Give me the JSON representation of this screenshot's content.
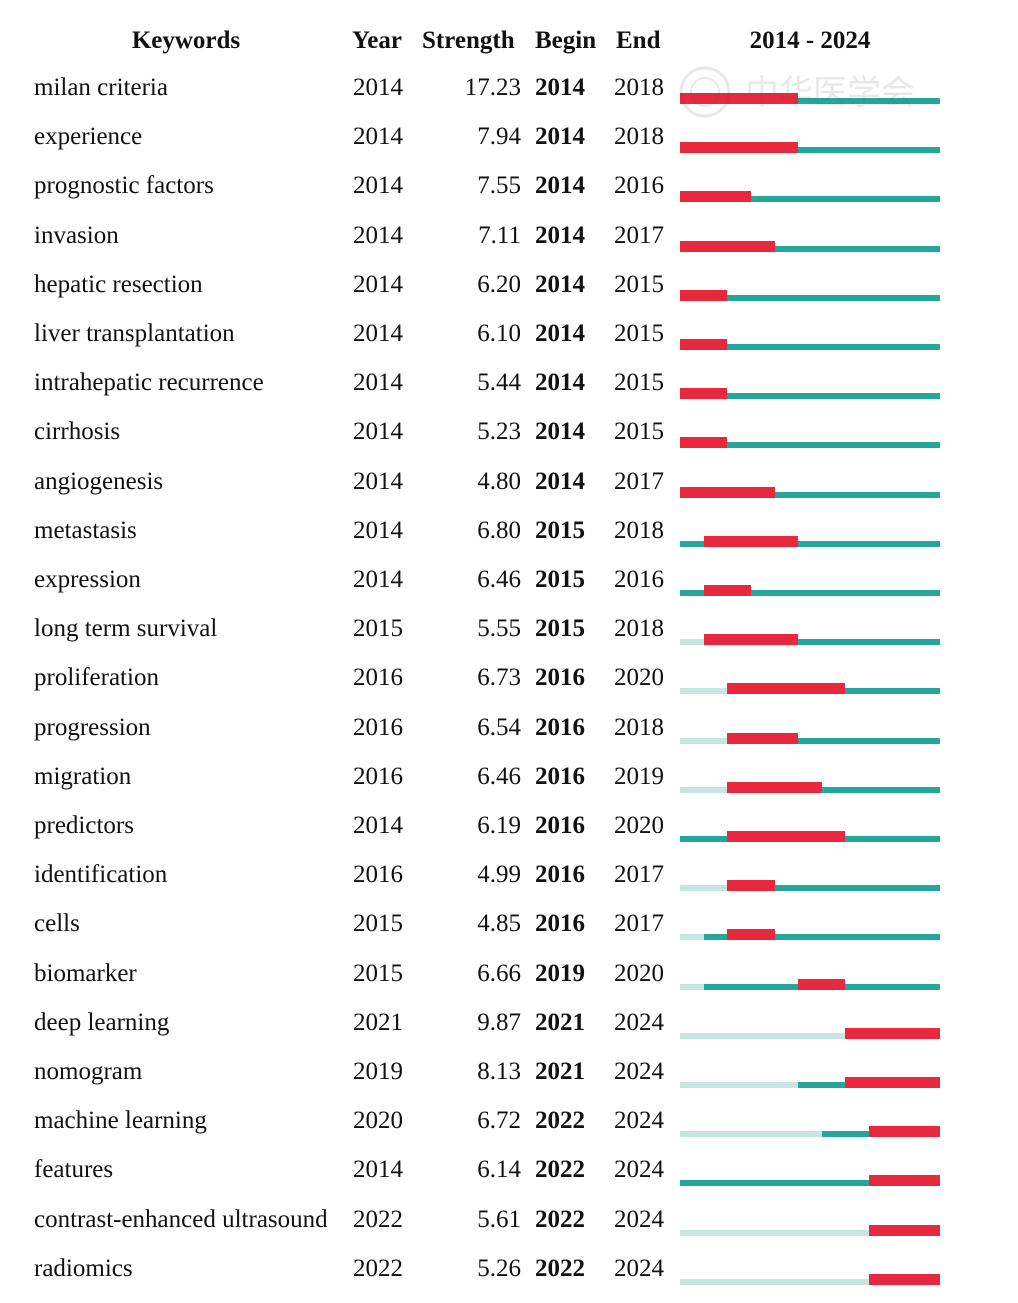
{
  "chart_data": {
    "type": "table",
    "columns": [
      "Keywords",
      "Year",
      "Strength",
      "Begin",
      "End"
    ],
    "range_label": "2014 - 2024",
    "timeline_start": 2014,
    "timeline_end": 2024,
    "colors": {
      "burst": "#e8283c",
      "active": "#26a69a",
      "inactive": "#c7e6e2"
    },
    "rows": [
      {
        "keyword": "milan criteria",
        "year": "2014",
        "strength": "17.23",
        "begin": "2014",
        "end": "2018"
      },
      {
        "keyword": "experience",
        "year": "2014",
        "strength": "7.94",
        "begin": "2014",
        "end": "2018"
      },
      {
        "keyword": "prognostic factors",
        "year": "2014",
        "strength": "7.55",
        "begin": "2014",
        "end": "2016"
      },
      {
        "keyword": "invasion",
        "year": "2014",
        "strength": "7.11",
        "begin": "2014",
        "end": "2017"
      },
      {
        "keyword": "hepatic resection",
        "year": "2014",
        "strength": "6.20",
        "begin": "2014",
        "end": "2015"
      },
      {
        "keyword": "liver transplantation",
        "year": "2014",
        "strength": "6.10",
        "begin": "2014",
        "end": "2015"
      },
      {
        "keyword": "intrahepatic recurrence",
        "year": "2014",
        "strength": "5.44",
        "begin": "2014",
        "end": "2015"
      },
      {
        "keyword": "cirrhosis",
        "year": "2014",
        "strength": "5.23",
        "begin": "2014",
        "end": "2015"
      },
      {
        "keyword": "angiogenesis",
        "year": "2014",
        "strength": "4.80",
        "begin": "2014",
        "end": "2017"
      },
      {
        "keyword": "metastasis",
        "year": "2014",
        "strength": "6.80",
        "begin": "2015",
        "end": "2018"
      },
      {
        "keyword": "expression",
        "year": "2014",
        "strength": "6.46",
        "begin": "2015",
        "end": "2016"
      },
      {
        "keyword": "long term survival",
        "year": "2015",
        "strength": "5.55",
        "begin": "2015",
        "end": "2018"
      },
      {
        "keyword": "proliferation",
        "year": "2016",
        "strength": "6.73",
        "begin": "2016",
        "end": "2020"
      },
      {
        "keyword": "progression",
        "year": "2016",
        "strength": "6.54",
        "begin": "2016",
        "end": "2018"
      },
      {
        "keyword": "migration",
        "year": "2016",
        "strength": "6.46",
        "begin": "2016",
        "end": "2019"
      },
      {
        "keyword": "predictors",
        "year": "2014",
        "strength": "6.19",
        "begin": "2016",
        "end": "2020"
      },
      {
        "keyword": "identification",
        "year": "2016",
        "strength": "4.99",
        "begin": "2016",
        "end": "2017"
      },
      {
        "keyword": "cells",
        "year": "2015",
        "strength": "4.85",
        "begin": "2016",
        "end": "2017"
      },
      {
        "keyword": "biomarker",
        "year": "2015",
        "strength": "6.66",
        "begin": "2019",
        "end": "2020"
      },
      {
        "keyword": "deep learning",
        "year": "2021",
        "strength": "9.87",
        "begin": "2021",
        "end": "2024"
      },
      {
        "keyword": "nomogram",
        "year": "2019",
        "strength": "8.13",
        "begin": "2021",
        "end": "2024"
      },
      {
        "keyword": "machine learning",
        "year": "2020",
        "strength": "6.72",
        "begin": "2022",
        "end": "2024"
      },
      {
        "keyword": "features",
        "year": "2014",
        "strength": "6.14",
        "begin": "2022",
        "end": "2024"
      },
      {
        "keyword": "contrast-enhanced ultrasound",
        "year": "2022",
        "strength": "5.61",
        "begin": "2022",
        "end": "2024"
      },
      {
        "keyword": "radiomics",
        "year": "2022",
        "strength": "5.26",
        "begin": "2022",
        "end": "2024"
      }
    ]
  },
  "watermark": {
    "text": "中华医学会"
  }
}
